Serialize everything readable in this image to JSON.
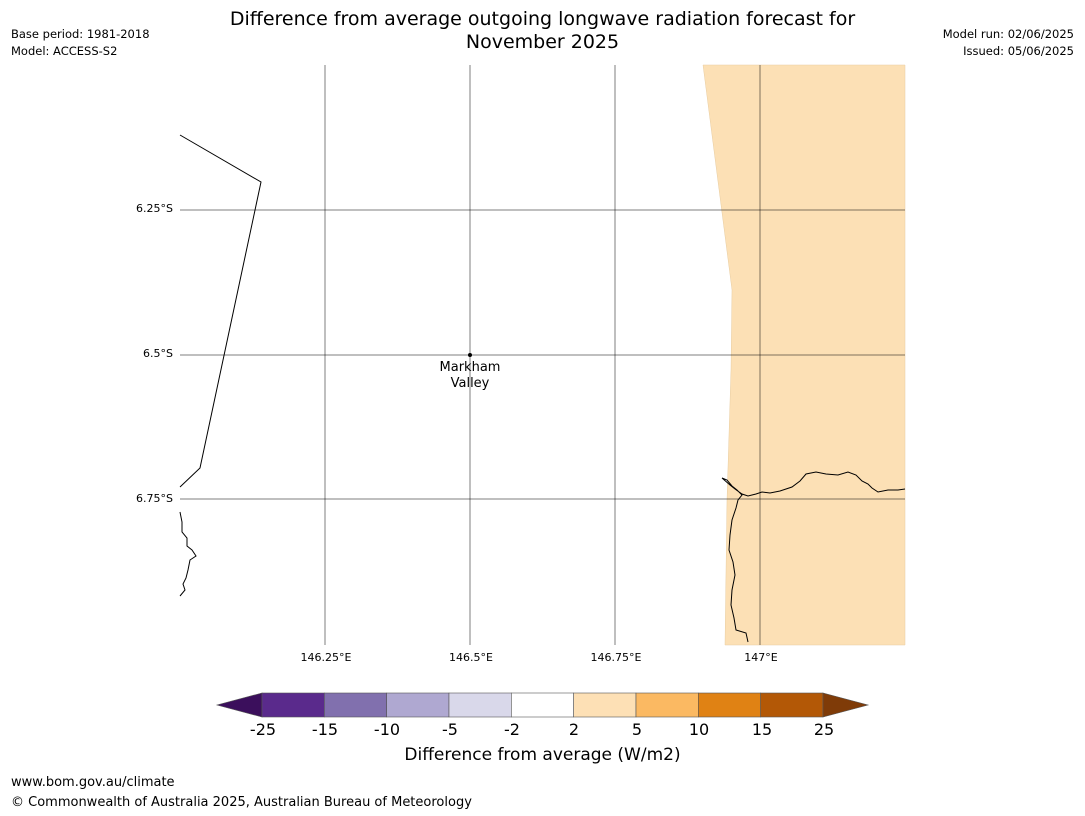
{
  "header": {
    "title": "Difference from average outgoing longwave radiation forecast for\nNovember 2025",
    "base_period": "Base period: 1981-2018",
    "model": "Model: ACCESS-S2",
    "model_run": "Model run: 02/06/2025",
    "issued": "Issued: 05/06/2025"
  },
  "map": {
    "lat_labels": [
      "6.25°S",
      "6.5°S",
      "6.75°S"
    ],
    "lon_labels": [
      "146.25°E",
      "146.5°E",
      "146.75°E",
      "147°E"
    ],
    "place": {
      "name_line1": "Markham",
      "name_line2": "Valley"
    },
    "fill_color": "#fce0b5",
    "fill_category": "2 to 5"
  },
  "colorbar": {
    "ticks": [
      "-25",
      "-15",
      "-10",
      "-5",
      "-2",
      "2",
      "5",
      "10",
      "15",
      "25"
    ],
    "colors": [
      "#3b0f5c",
      "#5a2a8c",
      "#8170ae",
      "#afa8d1",
      "#d9d8ea",
      "#ffffff",
      "#fde0b5",
      "#fbb962",
      "#e08214",
      "#b35806",
      "#7f3b08"
    ],
    "label": "Difference from average (W/m2)"
  },
  "footer": {
    "url": "www.bom.gov.au/climate",
    "copyright": "© Commonwealth of Australia 2025, Australian Bureau of Meteorology"
  }
}
